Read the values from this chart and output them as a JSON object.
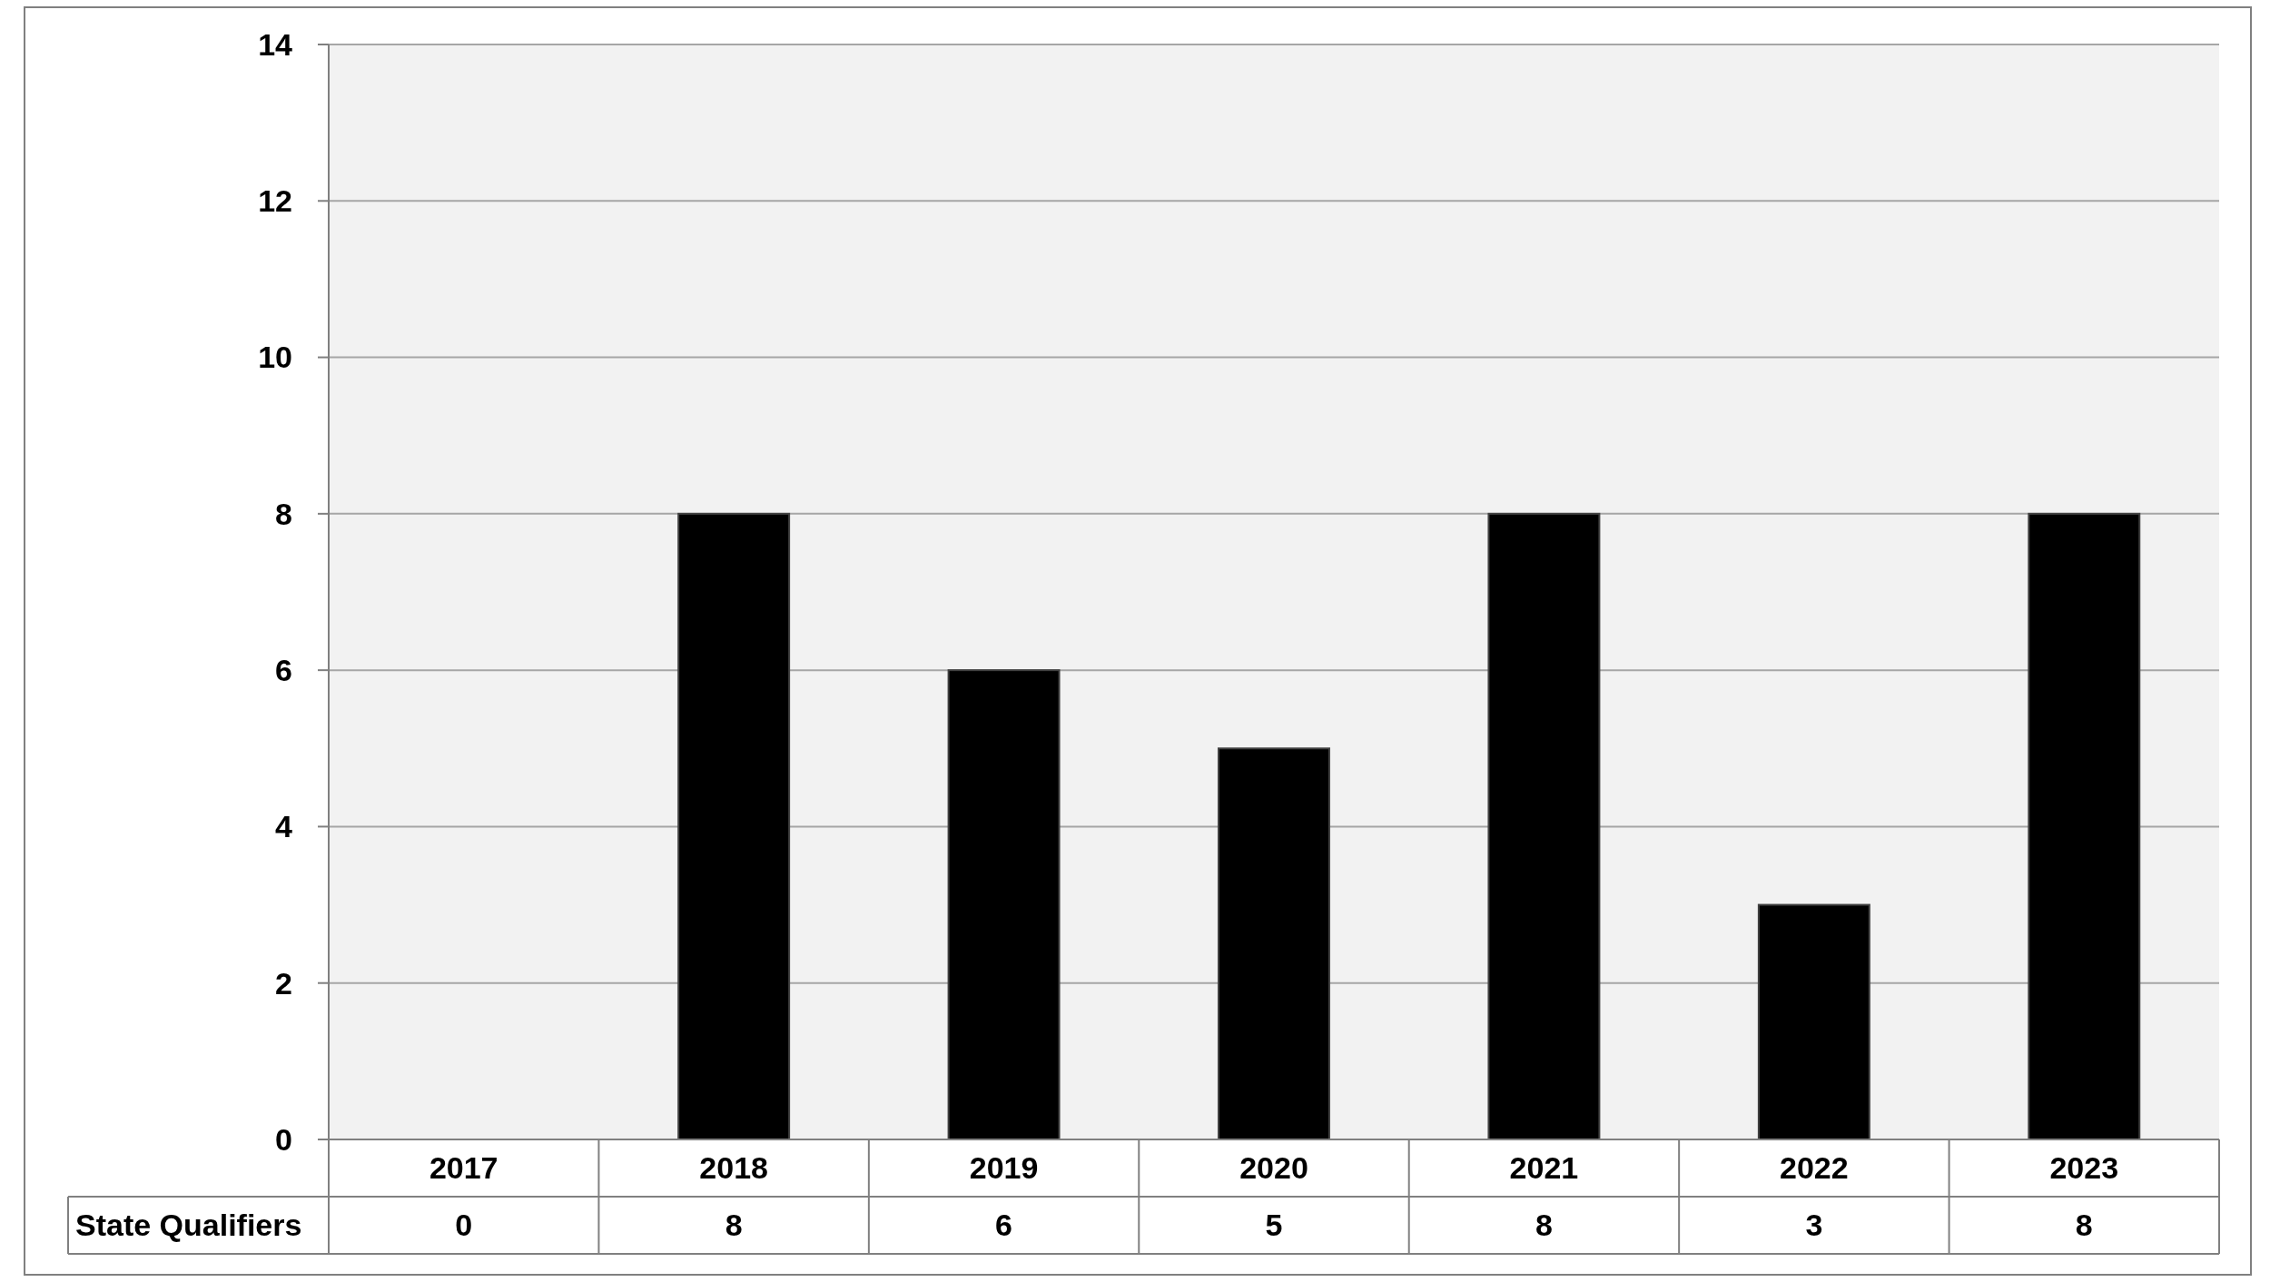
{
  "chart_data": {
    "type": "bar",
    "categories": [
      "2017",
      "2018",
      "2019",
      "2020",
      "2021",
      "2022",
      "2023"
    ],
    "series": [
      {
        "name": "State Qualifiers",
        "color": "#000000",
        "values": [
          0,
          8,
          6,
          5,
          8,
          3,
          8
        ]
      }
    ],
    "ylim": [
      0,
      14
    ],
    "yticks": [
      0,
      2,
      4,
      6,
      8,
      10,
      12,
      14
    ],
    "grid": "y",
    "data_labels": true
  }
}
